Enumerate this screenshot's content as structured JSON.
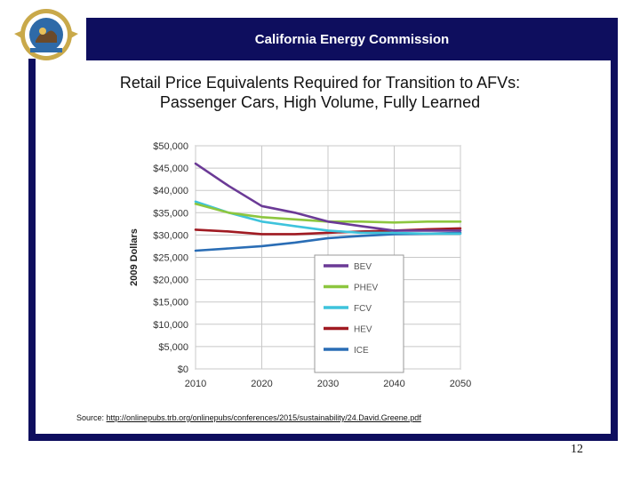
{
  "header": {
    "title": "California Energy Commission"
  },
  "slide": {
    "title_line1": "Retail Price Equivalents Required for Transition to AFVs:",
    "title_line2": "Passenger Cars, High Volume, Fully Learned",
    "source_prefix": "Source: ",
    "source_url": "http://onlinepubs.trb.org/onlinepubs/conferences/2015/sustainability/24.David.Greene.pdf",
    "page_number": "12"
  },
  "colors": {
    "header_bg": "#0e0e5e",
    "BEV": "#6b3a96",
    "PHEV": "#8dc63f",
    "FCV": "#3ec3dc",
    "HEV": "#a01a22",
    "ICE": "#2a6db5"
  },
  "chart_data": {
    "type": "line",
    "title": "",
    "xlabel": "",
    "ylabel": "2009 Dollars",
    "xlim": [
      2010,
      2050
    ],
    "ylim": [
      0,
      50000
    ],
    "x_ticks": [
      "2010",
      "2020",
      "2030",
      "2040",
      "2050"
    ],
    "y_ticks": [
      "$0",
      "$5,000",
      "$10,000",
      "$15,000",
      "$20,000",
      "$25,000",
      "$30,000",
      "$35,000",
      "$40,000",
      "$45,000",
      "$50,000"
    ],
    "legend_position": "inside-lower-center",
    "x": [
      2010,
      2015,
      2020,
      2025,
      2030,
      2035,
      2040,
      2045,
      2050
    ],
    "series": [
      {
        "name": "BEV",
        "values": [
          46000,
          41000,
          36500,
          35000,
          33000,
          32000,
          31000,
          31000,
          31000
        ]
      },
      {
        "name": "PHEV",
        "values": [
          37000,
          35000,
          34000,
          33500,
          33000,
          33000,
          32800,
          33000,
          33000
        ]
      },
      {
        "name": "FCV",
        "values": [
          37500,
          35000,
          33000,
          32000,
          31000,
          30500,
          30500,
          30300,
          30300
        ]
      },
      {
        "name": "HEV",
        "values": [
          31200,
          30800,
          30200,
          30200,
          30500,
          30800,
          31000,
          31300,
          31500
        ]
      },
      {
        "name": "ICE",
        "values": [
          26500,
          27000,
          27500,
          28300,
          29300,
          29800,
          30200,
          30300,
          30500
        ]
      }
    ]
  }
}
